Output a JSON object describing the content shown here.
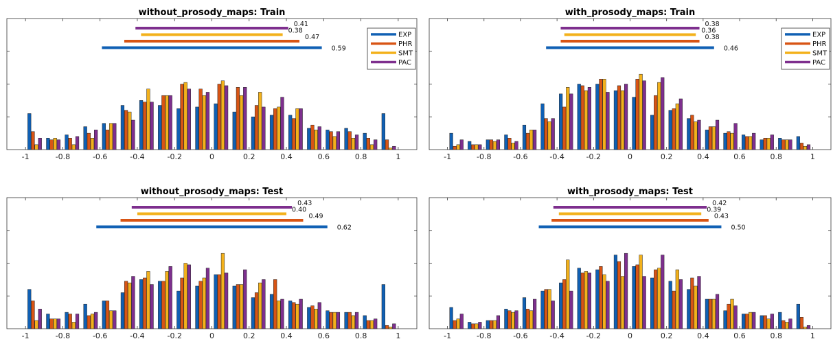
{
  "chart_data": [
    {
      "type": "bar",
      "title": "without_prosody_maps: Train",
      "xlim": [
        -1.1,
        1.1
      ],
      "xticks": [
        "-1",
        "-0.8",
        "-0.6",
        "-0.4",
        "-0.2",
        "0",
        "0.2",
        "0.4",
        "0.6",
        "0.8",
        "1"
      ],
      "ymax": 80,
      "legend": {
        "placement": "top-right",
        "entries": [
          "EXP",
          "PHR",
          "SMT",
          "PAC"
        ]
      },
      "series": [
        {
          "name": "EXP",
          "color": "#1060b4",
          "values": [
            22,
            7,
            9,
            14,
            16,
            27,
            30,
            27,
            25,
            26,
            28,
            23,
            20,
            21,
            21,
            13,
            12,
            13,
            10,
            22
          ]
        },
        {
          "name": "PHR",
          "color": "#d85414",
          "values": [
            11,
            6,
            7,
            10,
            12,
            24,
            29,
            33,
            40,
            37,
            40,
            38,
            27,
            25,
            19,
            15,
            11,
            11,
            7,
            6
          ]
        },
        {
          "name": "SMT",
          "color": "#f3b11b",
          "values": [
            3,
            7,
            3,
            7,
            16,
            23,
            37,
            33,
            41,
            33,
            42,
            33,
            35,
            26,
            25,
            12,
            8,
            7,
            3,
            1
          ]
        },
        {
          "name": "PAC",
          "color": "#7e2f8e",
          "values": [
            7,
            6,
            8,
            12,
            16,
            18,
            29,
            33,
            37,
            35,
            39,
            38,
            26,
            32,
            25,
            14,
            11,
            9,
            6,
            2
          ]
        }
      ],
      "ranges": [
        {
          "series": "PAC",
          "x0": -0.41,
          "x1": 0.41,
          "label": "0.41"
        },
        {
          "series": "SMT",
          "x0": -0.38,
          "x1": 0.38,
          "label": "0.38"
        },
        {
          "series": "PHR",
          "x0": -0.47,
          "x1": 0.47,
          "label": "0.47"
        },
        {
          "series": "EXP",
          "x0": -0.59,
          "x1": 0.59,
          "label": "0.59"
        }
      ]
    },
    {
      "type": "bar",
      "title": "with_prosody_maps: Train",
      "xlim": [
        -1.1,
        1.1
      ],
      "xticks": [
        "-1",
        "-0.8",
        "-0.6",
        "-0.4",
        "-0.2",
        "0",
        "0.2",
        "0.4",
        "0.6",
        "0.8",
        "1"
      ],
      "ymax": 80,
      "legend": {
        "placement": "top-right",
        "entries": [
          "EXP",
          "PHR",
          "SMT",
          "PAC"
        ]
      },
      "series": [
        {
          "name": "EXP",
          "color": "#1060b4",
          "values": [
            10,
            5,
            6,
            9,
            15,
            28,
            34,
            40,
            40,
            36,
            32,
            21,
            24,
            19,
            12,
            10,
            9,
            6,
            7,
            8
          ]
        },
        {
          "name": "PHR",
          "color": "#d85414",
          "values": [
            2,
            3,
            6,
            7,
            10,
            19,
            26,
            39,
            43,
            39,
            43,
            33,
            25,
            21,
            14,
            11,
            8,
            7,
            6,
            4
          ]
        },
        {
          "name": "SMT",
          "color": "#f3b11b",
          "values": [
            3,
            3,
            5,
            4,
            12,
            17,
            38,
            36,
            43,
            36,
            46,
            41,
            28,
            17,
            14,
            10,
            8,
            7,
            6,
            2
          ]
        },
        {
          "name": "PAC",
          "color": "#7e2f8e",
          "values": [
            6,
            3,
            6,
            5,
            12,
            19,
            34,
            38,
            35,
            40,
            42,
            44,
            31,
            18,
            18,
            16,
            10,
            9,
            6,
            3
          ]
        }
      ],
      "ranges": [
        {
          "series": "PAC",
          "x0": -0.38,
          "x1": 0.38,
          "label": "0.38"
        },
        {
          "series": "SMT",
          "x0": -0.36,
          "x1": 0.36,
          "label": "0.36"
        },
        {
          "series": "PHR",
          "x0": -0.38,
          "x1": 0.38,
          "label": "0.38"
        },
        {
          "series": "EXP",
          "x0": -0.46,
          "x1": 0.46,
          "label": "0.46"
        }
      ]
    },
    {
      "type": "bar",
      "title": "without_prosody_maps: Test",
      "xlim": [
        -1.1,
        1.1
      ],
      "xticks": [
        "-1",
        "-0.8",
        "-0.6",
        "-0.4",
        "-0.2",
        "0",
        "0.2",
        "0.4",
        "0.6",
        "0.8",
        "1"
      ],
      "ymax": 80,
      "legend": null,
      "series": [
        {
          "name": "EXP",
          "color": "#1060b4",
          "values": [
            24,
            9,
            10,
            15,
            17,
            22,
            30,
            29,
            23,
            26,
            33,
            26,
            19,
            21,
            17,
            13,
            11,
            10,
            8,
            27
          ]
        },
        {
          "name": "PHR",
          "color": "#d85414",
          "values": [
            17,
            6,
            9,
            8,
            17,
            29,
            31,
            29,
            31,
            29,
            33,
            27,
            22,
            30,
            16,
            14,
            10,
            10,
            5,
            2
          ]
        },
        {
          "name": "SMT",
          "color": "#f3b11b",
          "values": [
            5,
            6,
            4,
            9,
            11,
            28,
            35,
            35,
            40,
            31,
            46,
            27,
            28,
            17,
            15,
            12,
            10,
            8,
            5,
            1
          ]
        },
        {
          "name": "PAC",
          "color": "#7e2f8e",
          "values": [
            12,
            6,
            9,
            10,
            11,
            32,
            27,
            38,
            39,
            37,
            34,
            36,
            30,
            18,
            18,
            16,
            10,
            10,
            6,
            3
          ]
        }
      ],
      "ranges": [
        {
          "series": "PAC",
          "x0": -0.43,
          "x1": 0.43,
          "label": "0.43"
        },
        {
          "series": "SMT",
          "x0": -0.4,
          "x1": 0.4,
          "label": "0.40"
        },
        {
          "series": "PHR",
          "x0": -0.49,
          "x1": 0.49,
          "label": "0.49"
        },
        {
          "series": "EXP",
          "x0": -0.62,
          "x1": 0.62,
          "label": "0.62"
        }
      ]
    },
    {
      "type": "bar",
      "title": "with_prosody_maps: Test",
      "xlim": [
        -1.1,
        1.1
      ],
      "xticks": [
        "-1",
        "-0.8",
        "-0.6",
        "-0.4",
        "-0.2",
        "0",
        "0.2",
        "0.4",
        "0.6",
        "0.8",
        "1"
      ],
      "ymax": 80,
      "legend": null,
      "series": [
        {
          "name": "EXP",
          "color": "#1060b4",
          "values": [
            13,
            4,
            5,
            12,
            19,
            23,
            28,
            37,
            36,
            45,
            38,
            31,
            29,
            24,
            18,
            11,
            9,
            8,
            10,
            15
          ]
        },
        {
          "name": "PHR",
          "color": "#d85414",
          "values": [
            5,
            3,
            5,
            11,
            12,
            24,
            30,
            34,
            38,
            41,
            39,
            36,
            23,
            31,
            18,
            15,
            9,
            8,
            5,
            7
          ]
        },
        {
          "name": "SMT",
          "color": "#f3b11b",
          "values": [
            6,
            3,
            5,
            10,
            11,
            24,
            42,
            35,
            33,
            32,
            45,
            37,
            36,
            26,
            18,
            18,
            10,
            6,
            4,
            1
          ]
        },
        {
          "name": "PAC",
          "color": "#7e2f8e",
          "values": [
            9,
            4,
            8,
            11,
            18,
            17,
            23,
            34,
            29,
            46,
            32,
            45,
            30,
            32,
            21,
            14,
            10,
            9,
            6,
            2
          ]
        }
      ],
      "ranges": [
        {
          "series": "PAC",
          "x0": -0.42,
          "x1": 0.42,
          "label": "0.42"
        },
        {
          "series": "SMT",
          "x0": -0.39,
          "x1": 0.39,
          "label": "0.39"
        },
        {
          "series": "PHR",
          "x0": -0.43,
          "x1": 0.43,
          "label": "0.43"
        },
        {
          "series": "EXP",
          "x0": -0.5,
          "x1": 0.5,
          "label": "0.50"
        }
      ]
    }
  ]
}
